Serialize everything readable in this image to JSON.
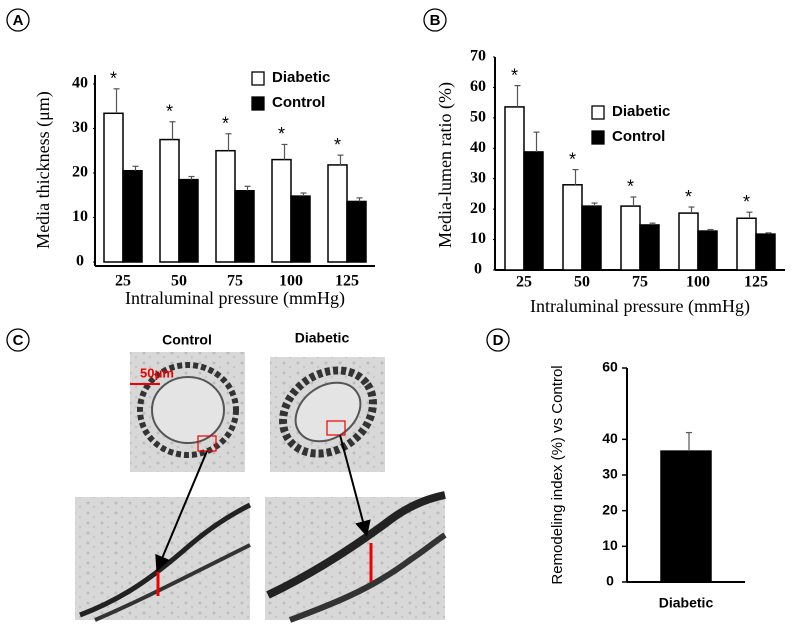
{
  "chart_data": [
    {
      "type": "bar",
      "panel": "A",
      "xlabel": "Intraluminal pressure (mmHg)",
      "ylabel": "Media thickness (μm)",
      "categories": [
        "25",
        "50",
        "75",
        "100",
        "125"
      ],
      "series": [
        {
          "name": "Diabetic",
          "color": "#ffffff",
          "values": [
            33.4,
            27.5,
            25,
            23,
            21.8
          ],
          "errors": [
            5.5,
            4,
            3.8,
            3.4,
            2.2
          ]
        },
        {
          "name": "Control",
          "color": "#000000",
          "values": [
            20.5,
            18.5,
            16,
            14.8,
            13.6
          ],
          "errors": [
            1,
            0.7,
            1,
            0.7,
            0.8
          ]
        }
      ],
      "significance": [
        "*",
        "*",
        "*",
        "*",
        "*"
      ],
      "ylim": [
        0,
        42
      ],
      "yticks": [
        0,
        10,
        20,
        30,
        40
      ]
    },
    {
      "type": "bar",
      "panel": "B",
      "xlabel": "Intraluminal pressure (mmHg)",
      "ylabel": "Media-lumen ratio (%)",
      "categories": [
        "25",
        "50",
        "75",
        "100",
        "125"
      ],
      "series": [
        {
          "name": "Diabetic",
          "color": "#ffffff",
          "values": [
            53.6,
            28,
            21,
            18.7,
            17
          ],
          "errors": [
            7,
            5,
            3,
            2,
            2
          ]
        },
        {
          "name": "Control",
          "color": "#000000",
          "values": [
            38.8,
            21,
            14.8,
            12.8,
            11.8
          ],
          "errors": [
            6.5,
            1,
            0.6,
            0.5,
            0.4
          ]
        }
      ],
      "significance": [
        "*",
        "*",
        "*",
        "*",
        "*"
      ],
      "ylim": [
        0,
        70
      ],
      "yticks": [
        0,
        10,
        20,
        30,
        40,
        50,
        60,
        70
      ]
    },
    {
      "type": "bar",
      "panel": "D",
      "ylabel": "Remodeling index (%) vs Control",
      "categories": [
        "Diabetic"
      ],
      "values": [
        36.7
      ],
      "errors": [
        5.2
      ],
      "color": "#000000",
      "ylim": [
        0,
        60
      ],
      "yticks": [
        0,
        10,
        20,
        30,
        40,
        60
      ]
    }
  ],
  "micrographs": {
    "panel": "C",
    "titles": [
      "Control",
      "Diabetic"
    ],
    "scale_bar": "50μm"
  }
}
